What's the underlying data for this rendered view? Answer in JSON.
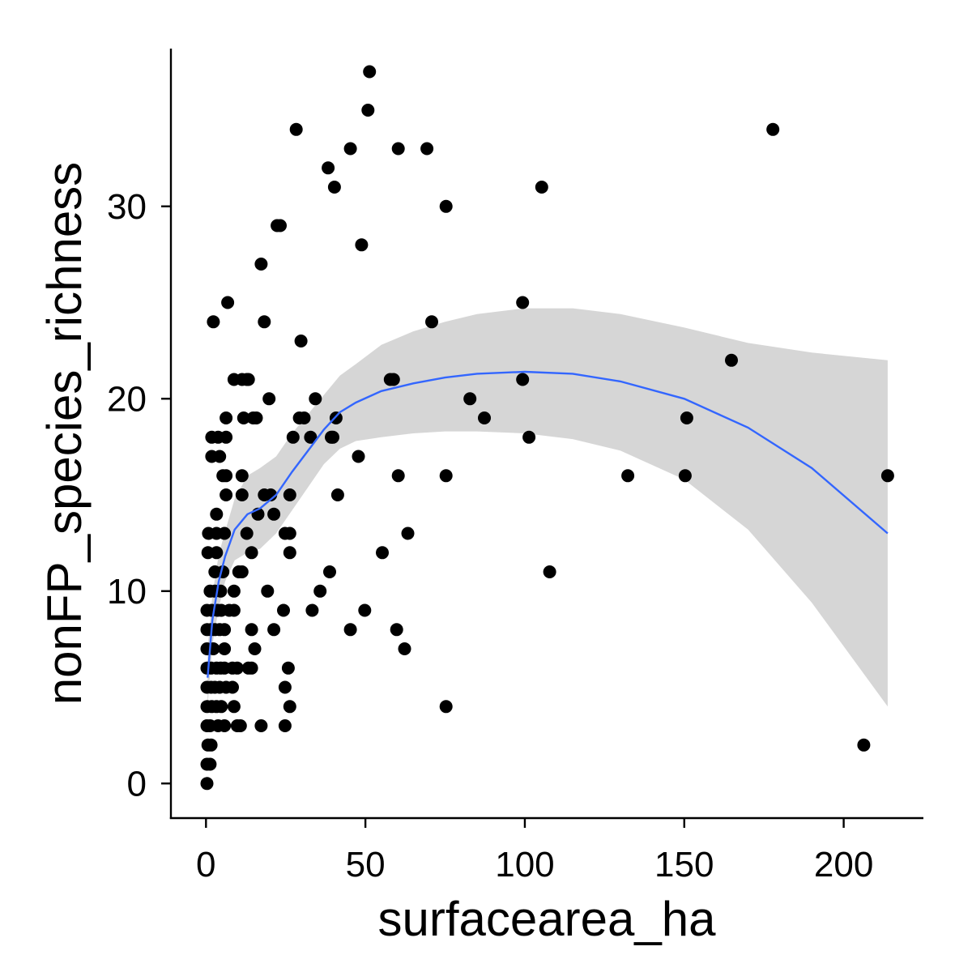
{
  "chart_data": {
    "type": "scatter",
    "title": "",
    "xlabel": "surfacearea_ha",
    "ylabel": "nonFP_species_richness",
    "xlim": [
      -11,
      225
    ],
    "ylim": [
      -1.8,
      38.2
    ],
    "xticks": [
      0,
      50,
      100,
      150,
      200
    ],
    "yticks": [
      0,
      10,
      20,
      30
    ],
    "xtick_labels": [
      "0",
      "50",
      "100",
      "150",
      "200"
    ],
    "ytick_labels": [
      "0",
      "10",
      "20",
      "30"
    ],
    "grid": false,
    "legend": "none",
    "point_color": "#000000",
    "smooth_color": "#3366FF",
    "band_color": "#999999",
    "points": [
      {
        "x": 0.3,
        "y": 0
      },
      {
        "x": 0.3,
        "y": 1
      },
      {
        "x": 1.3,
        "y": 1
      },
      {
        "x": 0.6,
        "y": 2
      },
      {
        "x": 1.6,
        "y": 2
      },
      {
        "x": 0.3,
        "y": 3
      },
      {
        "x": 1.3,
        "y": 3
      },
      {
        "x": 3.8,
        "y": 3
      },
      {
        "x": 5.8,
        "y": 3
      },
      {
        "x": 0.3,
        "y": 4
      },
      {
        "x": 1.8,
        "y": 4
      },
      {
        "x": 3.3,
        "y": 4
      },
      {
        "x": 4.8,
        "y": 4
      },
      {
        "x": 0.3,
        "y": 5
      },
      {
        "x": 1.6,
        "y": 5
      },
      {
        "x": 2.8,
        "y": 5
      },
      {
        "x": 4.3,
        "y": 5
      },
      {
        "x": 6.3,
        "y": 5
      },
      {
        "x": 0.3,
        "y": 6
      },
      {
        "x": 1.6,
        "y": 6
      },
      {
        "x": 3.3,
        "y": 6
      },
      {
        "x": 4.6,
        "y": 6
      },
      {
        "x": 5.8,
        "y": 6
      },
      {
        "x": 0.3,
        "y": 7
      },
      {
        "x": 2.3,
        "y": 7
      },
      {
        "x": 5.8,
        "y": 7
      },
      {
        "x": 0.3,
        "y": 8
      },
      {
        "x": 1.6,
        "y": 8
      },
      {
        "x": 2.8,
        "y": 8
      },
      {
        "x": 4.3,
        "y": 8
      },
      {
        "x": 5.8,
        "y": 8
      },
      {
        "x": 0.3,
        "y": 9
      },
      {
        "x": 1.8,
        "y": 9
      },
      {
        "x": 3.6,
        "y": 9
      },
      {
        "x": 4.8,
        "y": 9
      },
      {
        "x": 7.3,
        "y": 9
      },
      {
        "x": 1.3,
        "y": 10
      },
      {
        "x": 2.8,
        "y": 10
      },
      {
        "x": 4.6,
        "y": 10
      },
      {
        "x": 8.8,
        "y": 10
      },
      {
        "x": 2.8,
        "y": 11
      },
      {
        "x": 5.3,
        "y": 11
      },
      {
        "x": 0.6,
        "y": 12
      },
      {
        "x": 3.3,
        "y": 12
      },
      {
        "x": 0.8,
        "y": 13
      },
      {
        "x": 3.3,
        "y": 13
      },
      {
        "x": 5.8,
        "y": 13
      },
      {
        "x": 3.3,
        "y": 14
      },
      {
        "x": 6.3,
        "y": 15
      },
      {
        "x": 5.3,
        "y": 16
      },
      {
        "x": 6.3,
        "y": 16
      },
      {
        "x": 1.8,
        "y": 17
      },
      {
        "x": 4.3,
        "y": 17
      },
      {
        "x": 1.8,
        "y": 18
      },
      {
        "x": 3.8,
        "y": 18
      },
      {
        "x": 6.3,
        "y": 18
      },
      {
        "x": 6.3,
        "y": 19
      },
      {
        "x": 2.3,
        "y": 24
      },
      {
        "x": 6.8,
        "y": 25
      },
      {
        "x": 8.8,
        "y": 21
      },
      {
        "x": 11.3,
        "y": 21
      },
      {
        "x": 12.8,
        "y": 21
      },
      {
        "x": 13.3,
        "y": 21
      },
      {
        "x": 8.8,
        "y": 9
      },
      {
        "x": 8.3,
        "y": 6
      },
      {
        "x": 8.8,
        "y": 4
      },
      {
        "x": 8.3,
        "y": 5
      },
      {
        "x": 9.8,
        "y": 6
      },
      {
        "x": 9.8,
        "y": 3
      },
      {
        "x": 10.8,
        "y": 3
      },
      {
        "x": 11.3,
        "y": 11
      },
      {
        "x": 10.3,
        "y": 11
      },
      {
        "x": 11.3,
        "y": 15
      },
      {
        "x": 11.3,
        "y": 16
      },
      {
        "x": 11.8,
        "y": 19
      },
      {
        "x": 12.8,
        "y": 13
      },
      {
        "x": 13.3,
        "y": 6
      },
      {
        "x": 14.3,
        "y": 6
      },
      {
        "x": 14.3,
        "y": 12
      },
      {
        "x": 14.3,
        "y": 8
      },
      {
        "x": 15.3,
        "y": 7
      },
      {
        "x": 15.8,
        "y": 19
      },
      {
        "x": 14.8,
        "y": 19
      },
      {
        "x": 16.3,
        "y": 14
      },
      {
        "x": 17.3,
        "y": 3
      },
      {
        "x": 17.3,
        "y": 27
      },
      {
        "x": 18.3,
        "y": 15
      },
      {
        "x": 18.3,
        "y": 24
      },
      {
        "x": 19.3,
        "y": 10
      },
      {
        "x": 19.8,
        "y": 20
      },
      {
        "x": 20.3,
        "y": 15
      },
      {
        "x": 21.3,
        "y": 14
      },
      {
        "x": 21.3,
        "y": 8
      },
      {
        "x": 22.3,
        "y": 29
      },
      {
        "x": 23.3,
        "y": 29
      },
      {
        "x": 24.3,
        "y": 9
      },
      {
        "x": 24.8,
        "y": 13
      },
      {
        "x": 24.8,
        "y": 3
      },
      {
        "x": 24.8,
        "y": 5
      },
      {
        "x": 25.8,
        "y": 6
      },
      {
        "x": 26.3,
        "y": 13
      },
      {
        "x": 26.3,
        "y": 12
      },
      {
        "x": 26.3,
        "y": 4
      },
      {
        "x": 26.3,
        "y": 15
      },
      {
        "x": 27.3,
        "y": 18
      },
      {
        "x": 28.3,
        "y": 34
      },
      {
        "x": 29.3,
        "y": 19
      },
      {
        "x": 29.8,
        "y": 23
      },
      {
        "x": 30.8,
        "y": 19
      },
      {
        "x": 32.8,
        "y": 18
      },
      {
        "x": 33.3,
        "y": 9
      },
      {
        "x": 34.3,
        "y": 20
      },
      {
        "x": 35.8,
        "y": 10
      },
      {
        "x": 38.3,
        "y": 32
      },
      {
        "x": 38.8,
        "y": 11
      },
      {
        "x": 39.3,
        "y": 18
      },
      {
        "x": 39.8,
        "y": 18
      },
      {
        "x": 40.3,
        "y": 31
      },
      {
        "x": 40.8,
        "y": 19
      },
      {
        "x": 41.3,
        "y": 15
      },
      {
        "x": 45.3,
        "y": 33
      },
      {
        "x": 45.3,
        "y": 8
      },
      {
        "x": 47.8,
        "y": 17
      },
      {
        "x": 48.8,
        "y": 28
      },
      {
        "x": 49.8,
        "y": 9
      },
      {
        "x": 50.8,
        "y": 35
      },
      {
        "x": 51.3,
        "y": 37
      },
      {
        "x": 55.3,
        "y": 12
      },
      {
        "x": 57.8,
        "y": 21
      },
      {
        "x": 58.8,
        "y": 21
      },
      {
        "x": 59.8,
        "y": 8
      },
      {
        "x": 60.3,
        "y": 16
      },
      {
        "x": 60.3,
        "y": 33
      },
      {
        "x": 62.3,
        "y": 7
      },
      {
        "x": 63.3,
        "y": 13
      },
      {
        "x": 69.3,
        "y": 33
      },
      {
        "x": 70.8,
        "y": 24
      },
      {
        "x": 75.3,
        "y": 16
      },
      {
        "x": 75.3,
        "y": 30
      },
      {
        "x": 75.3,
        "y": 4
      },
      {
        "x": 82.8,
        "y": 20
      },
      {
        "x": 87.3,
        "y": 19
      },
      {
        "x": 99.3,
        "y": 25
      },
      {
        "x": 99.3,
        "y": 21
      },
      {
        "x": 101.3,
        "y": 18
      },
      {
        "x": 105.3,
        "y": 31
      },
      {
        "x": 107.8,
        "y": 11
      },
      {
        "x": 132.3,
        "y": 16
      },
      {
        "x": 150.3,
        "y": 16
      },
      {
        "x": 150.8,
        "y": 19
      },
      {
        "x": 164.8,
        "y": 22
      },
      {
        "x": 177.8,
        "y": 34
      },
      {
        "x": 206.3,
        "y": 2
      },
      {
        "x": 213.8,
        "y": 16
      }
    ],
    "smooth": {
      "method": "loess",
      "x": [
        0.5,
        2,
        4,
        6,
        9,
        13,
        17,
        22,
        27,
        32,
        37,
        42,
        47,
        55,
        65,
        75,
        85,
        100,
        115,
        130,
        150,
        170,
        190,
        213.8
      ],
      "y": [
        5.5,
        8.5,
        10.5,
        11.8,
        13.2,
        14.0,
        14.3,
        15.0,
        16.2,
        17.3,
        18.4,
        19.3,
        19.8,
        20.4,
        20.8,
        21.1,
        21.3,
        21.4,
        21.3,
        20.9,
        20.0,
        18.5,
        16.4,
        13.0
      ],
      "lower": [
        4.0,
        7.2,
        9.1,
        10.5,
        11.6,
        12.0,
        12.2,
        13.0,
        14.2,
        15.4,
        16.6,
        17.4,
        17.8,
        18.0,
        18.2,
        18.3,
        18.3,
        18.2,
        17.9,
        17.3,
        15.8,
        13.2,
        9.4,
        4.0
      ],
      "upper": [
        7.0,
        9.8,
        11.9,
        13.1,
        14.8,
        16.0,
        16.4,
        17.0,
        18.2,
        19.2,
        20.2,
        21.2,
        21.8,
        22.8,
        23.5,
        24.0,
        24.4,
        24.7,
        24.7,
        24.4,
        23.7,
        22.9,
        22.4,
        22.0
      ]
    }
  }
}
